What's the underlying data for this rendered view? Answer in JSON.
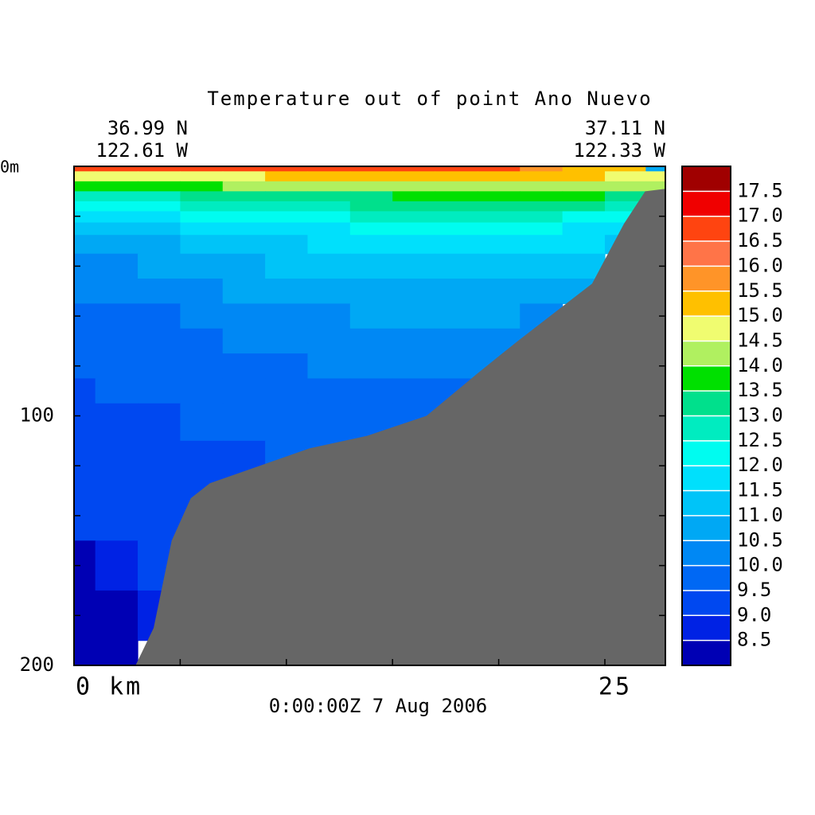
{
  "chart_data": {
    "type": "contour",
    "title": "Temperature out of point Ano Nuevo",
    "left_lat": "36.99 N",
    "left_lon": "122.61 W",
    "right_lat": "37.11 N",
    "right_lon": "122.33 W",
    "time_label": "0:00:00Z   7 Aug 2006",
    "xlim": [
      0,
      27.85
    ],
    "ylim": [
      200,
      0
    ],
    "xticks": [
      {
        "value": 0,
        "label": "0 km"
      },
      {
        "value": 5,
        "label": null
      },
      {
        "value": 10,
        "label": null
      },
      {
        "value": 15,
        "label": null
      },
      {
        "value": 20,
        "label": null
      },
      25
    ],
    "yticks": [
      {
        "value": 0,
        "label": "0m"
      },
      {
        "value": 20,
        "label": null
      },
      {
        "value": 40,
        "label": null
      },
      {
        "value": 60,
        "label": null
      },
      {
        "value": 80,
        "label": null
      },
      100,
      {
        "value": 120,
        "label": null
      },
      {
        "value": 140,
        "label": null
      },
      {
        "value": 160,
        "label": null
      },
      {
        "value": 180,
        "label": null
      },
      200
    ],
    "x": [
      0,
      2,
      4,
      6,
      8,
      10,
      12,
      14,
      16,
      18,
      20,
      22,
      24,
      26,
      27.85
    ],
    "depth": [
      0,
      4,
      8,
      12,
      16,
      20,
      25,
      30,
      40,
      50,
      60,
      70,
      80,
      90,
      100,
      120,
      140,
      160,
      180,
      200
    ],
    "z": [
      [
        16.7,
        16.9,
        16.6,
        16.7,
        16.8,
        16.8,
        16.9,
        16.9,
        16.8,
        16.8,
        16.7,
        15.8,
        15.3,
        15.2,
        10.8
      ],
      [
        14.6,
        14.7,
        14.7,
        14.8,
        14.9,
        15.0,
        15.0,
        15.0,
        15.1,
        15.1,
        15.2,
        15.2,
        15.0,
        14.8,
        14.6
      ],
      [
        13.6,
        13.7,
        13.8,
        13.9,
        14.0,
        14.2,
        14.3,
        14.3,
        14.4,
        14.4,
        14.4,
        14.4,
        14.3,
        14.2,
        14.0
      ],
      [
        12.6,
        12.7,
        12.8,
        13.0,
        13.1,
        13.2,
        13.3,
        13.4,
        13.5,
        13.6,
        13.6,
        13.6,
        13.5,
        13.3,
        13.0
      ],
      [
        12.1,
        12.2,
        12.3,
        12.5,
        12.6,
        12.8,
        12.9,
        13.0,
        13.0,
        13.1,
        13.1,
        13.1,
        13.0,
        12.8,
        12.6
      ],
      [
        11.6,
        11.7,
        11.8,
        12.0,
        12.1,
        12.3,
        12.4,
        12.5,
        12.5,
        12.5,
        12.5,
        12.5,
        12.4,
        12.2,
        null
      ],
      [
        11.1,
        11.2,
        11.3,
        11.5,
        11.6,
        11.8,
        11.9,
        12.0,
        12.0,
        12.0,
        12.0,
        12.0,
        11.9,
        11.8,
        null
      ],
      [
        10.7,
        10.8,
        10.9,
        11.1,
        11.2,
        11.4,
        11.5,
        11.6,
        11.6,
        11.6,
        11.6,
        11.6,
        11.5,
        11.4,
        null
      ],
      [
        10.3,
        10.4,
        10.5,
        10.6,
        10.9,
        11.0,
        11.1,
        11.2,
        11.2,
        11.2,
        11.1,
        11.1,
        11.0,
        null,
        null
      ],
      [
        10.1,
        10.2,
        10.2,
        10.3,
        10.5,
        10.6,
        10.7,
        10.8,
        10.8,
        10.8,
        10.8,
        10.8,
        10.7,
        null,
        null
      ],
      [
        9.8,
        9.9,
        9.9,
        10.0,
        10.2,
        10.3,
        10.4,
        10.5,
        10.5,
        10.6,
        10.5,
        10.4,
        null,
        null,
        null
      ],
      [
        9.7,
        9.8,
        9.8,
        9.9,
        10.0,
        10.1,
        10.2,
        10.2,
        10.2,
        10.3,
        10.2,
        10.1,
        null,
        null,
        null
      ],
      [
        9.6,
        9.7,
        9.7,
        9.8,
        9.9,
        9.9,
        10.0,
        10.0,
        10.1,
        10.1,
        10.0,
        null,
        null,
        null,
        null
      ],
      [
        9.4,
        9.5,
        9.6,
        9.7,
        9.8,
        9.8,
        9.8,
        9.9,
        9.9,
        9.9,
        null,
        null,
        null,
        null,
        null
      ],
      [
        9.3,
        9.3,
        9.4,
        9.5,
        9.6,
        9.6,
        9.7,
        9.7,
        9.7,
        9.8,
        null,
        null,
        null,
        null,
        null
      ],
      [
        9.2,
        9.2,
        9.3,
        9.3,
        9.4,
        9.5,
        9.5,
        null,
        null,
        null,
        null,
        null,
        null,
        null,
        null
      ],
      [
        9.1,
        9.1,
        9.1,
        9.2,
        null,
        null,
        null,
        null,
        null,
        null,
        null,
        null,
        null,
        null,
        null
      ],
      [
        8.4,
        8.6,
        9.0,
        null,
        null,
        null,
        null,
        null,
        null,
        null,
        null,
        null,
        null,
        null,
        null
      ],
      [
        8.4,
        8.4,
        8.7,
        null,
        null,
        null,
        null,
        null,
        null,
        null,
        null,
        null,
        null,
        null,
        null
      ],
      [
        8.3,
        8.3,
        null,
        null,
        null,
        null,
        null,
        null,
        null,
        null,
        null,
        null,
        null,
        null,
        null
      ]
    ],
    "bottom": {
      "color": "#666666",
      "x": [
        2.9,
        3.75,
        4.6,
        5.5,
        6.4,
        11.1,
        13.8,
        16.6,
        19,
        20.9,
        24.4,
        25.9,
        26.9,
        27.85
      ],
      "depth": [
        200,
        185,
        150,
        133,
        127,
        113,
        108,
        100,
        83,
        70,
        47,
        23,
        10,
        9
      ]
    },
    "levels": [
      8.0,
      8.5,
      9.0,
      9.5,
      10.0,
      10.5,
      11.0,
      11.5,
      12.0,
      12.5,
      13.0,
      13.5,
      14.0,
      14.5,
      15.0,
      15.5,
      16.0,
      16.5,
      17.0,
      17.5,
      18.0
    ],
    "colors": [
      "#0000b4",
      "#0022e4",
      "#0048f0",
      "#0068f4",
      "#0088f4",
      "#00a8f4",
      "#00c4f8",
      "#00e0fc",
      "#00fcf0",
      "#00ecc0",
      "#00e08c",
      "#00e000",
      "#b0f060",
      "#f0fc70",
      "#ffc000",
      "#ff9428",
      "#ff7448",
      "#ff4410",
      "#f00000",
      "#a00000"
    ],
    "colorbar_ticks": [
      8.5,
      {
        "value": 9.0,
        "label": "9.0"
      },
      9.5,
      {
        "value": 10.0,
        "label": "10.0"
      },
      10.5,
      {
        "value": 11.0,
        "label": "11.0"
      },
      11.5,
      {
        "value": 12.0,
        "label": "12.0"
      },
      12.5,
      {
        "value": 13.0,
        "label": "13.0"
      },
      13.5,
      {
        "value": 14.0,
        "label": "14.0"
      },
      14.5,
      {
        "value": 15.0,
        "label": "15.0"
      },
      15.5,
      {
        "value": 16.0,
        "label": "16.0"
      },
      16.5,
      {
        "value": 17.0,
        "label": "17.0"
      },
      17.5
    ]
  }
}
